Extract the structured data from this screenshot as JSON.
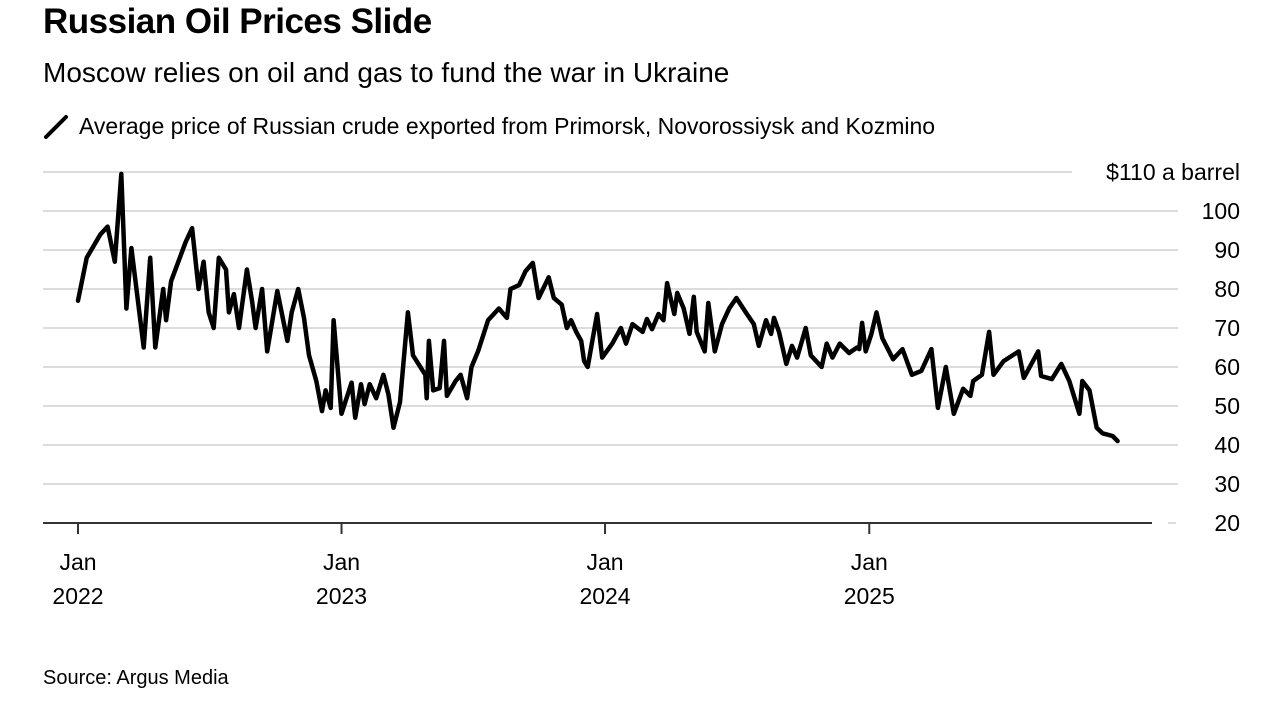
{
  "header": {
    "title": "Russian Oil Prices Slide",
    "subtitle": "Moscow relies on oil and gas to fund the war in Ukraine"
  },
  "legend": {
    "label": "Average price of Russian crude exported from Primorsk, Novorossiysk and Kozmino",
    "icon": "line-swatch-icon"
  },
  "footer": {
    "source": "Source: Argus Media"
  },
  "colors": {
    "line": "#000000",
    "grid": "#dcdcdc",
    "axis": "#333333"
  },
  "chart_data": {
    "type": "line",
    "title": "Russian Oil Prices Slide",
    "subtitle": "Moscow relies on oil and gas to fund the war in Ukraine",
    "xlabel": "",
    "ylabel": "",
    "ylim": [
      20,
      110
    ],
    "grid": true,
    "legend_position": "top-left",
    "y_ticks": [
      {
        "value": 110,
        "label": "$110 a barrel"
      },
      {
        "value": 100,
        "label": "100"
      },
      {
        "value": 90,
        "label": "90"
      },
      {
        "value": 80,
        "label": "80"
      },
      {
        "value": 70,
        "label": "70"
      },
      {
        "value": 60,
        "label": "60"
      },
      {
        "value": 50,
        "label": "50"
      },
      {
        "value": 40,
        "label": "40"
      },
      {
        "value": 30,
        "label": "30"
      },
      {
        "value": 20,
        "label": "20"
      }
    ],
    "x_ticks": [
      {
        "date": "2022-01-01",
        "month": "Jan",
        "year": "2022"
      },
      {
        "date": "2023-01-01",
        "month": "Jan",
        "year": "2023"
      },
      {
        "date": "2024-01-01",
        "month": "Jan",
        "year": "2024"
      },
      {
        "date": "2025-01-01",
        "month": "Jan",
        "year": "2025"
      }
    ],
    "series": [
      {
        "points": [
          [
            "2022-01-01",
            77
          ],
          [
            "2022-01-13",
            88
          ],
          [
            "2022-02-01",
            94
          ],
          [
            "2022-02-11",
            96
          ],
          [
            "2022-02-21",
            87
          ],
          [
            "2022-03-02",
            109.5
          ],
          [
            "2022-03-09",
            75
          ],
          [
            "2022-03-16",
            90.5
          ],
          [
            "2022-04-02",
            65
          ],
          [
            "2022-04-11",
            88
          ],
          [
            "2022-04-18",
            65
          ],
          [
            "2022-04-29",
            80
          ],
          [
            "2022-05-03",
            72
          ],
          [
            "2022-05-10",
            82
          ],
          [
            "2022-05-30",
            92
          ],
          [
            "2022-06-08",
            95.6
          ],
          [
            "2022-06-17",
            80
          ],
          [
            "2022-06-24",
            87
          ],
          [
            "2022-07-01",
            74
          ],
          [
            "2022-07-08",
            70
          ],
          [
            "2022-07-15",
            88
          ],
          [
            "2022-07-25",
            85
          ],
          [
            "2022-07-29",
            74
          ],
          [
            "2022-08-05",
            78.7
          ],
          [
            "2022-08-12",
            70
          ],
          [
            "2022-08-23",
            85
          ],
          [
            "2022-08-30",
            77
          ],
          [
            "2022-09-04",
            70
          ],
          [
            "2022-09-13",
            80
          ],
          [
            "2022-09-20",
            64
          ],
          [
            "2022-10-04",
            79.5
          ],
          [
            "2022-10-18",
            66.7
          ],
          [
            "2022-10-24",
            74
          ],
          [
            "2022-11-02",
            80
          ],
          [
            "2022-11-10",
            72.6
          ],
          [
            "2022-11-17",
            63
          ],
          [
            "2022-11-27",
            56.4
          ],
          [
            "2022-12-05",
            48.7
          ],
          [
            "2022-12-10",
            54
          ],
          [
            "2022-12-17",
            49.5
          ],
          [
            "2022-12-21",
            72
          ],
          [
            "2023-01-01",
            48
          ],
          [
            "2023-01-15",
            56
          ],
          [
            "2023-01-20",
            47
          ],
          [
            "2023-01-28",
            55.6
          ],
          [
            "2023-02-02",
            50.5
          ],
          [
            "2023-02-09",
            55.6
          ],
          [
            "2023-02-18",
            52
          ],
          [
            "2023-02-28",
            58
          ],
          [
            "2023-03-07",
            53
          ],
          [
            "2023-03-14",
            44.4
          ],
          [
            "2023-03-23",
            51
          ],
          [
            "2023-04-03",
            74
          ],
          [
            "2023-04-10",
            63
          ],
          [
            "2023-04-27",
            58
          ],
          [
            "2023-04-29",
            52
          ],
          [
            "2023-05-02",
            66.7
          ],
          [
            "2023-05-08",
            54
          ],
          [
            "2023-05-17",
            54.6
          ],
          [
            "2023-05-23",
            66.7
          ],
          [
            "2023-05-27",
            52.6
          ],
          [
            "2023-06-08",
            56.4
          ],
          [
            "2023-06-15",
            58
          ],
          [
            "2023-06-24",
            52
          ],
          [
            "2023-06-30",
            60
          ],
          [
            "2023-07-09",
            64
          ],
          [
            "2023-07-23",
            72
          ],
          [
            "2023-08-07",
            75
          ],
          [
            "2023-08-18",
            72.6
          ],
          [
            "2023-08-23",
            80
          ],
          [
            "2023-09-04",
            81
          ],
          [
            "2023-09-13",
            84.6
          ],
          [
            "2023-09-23",
            86.7
          ],
          [
            "2023-10-01",
            77.7
          ],
          [
            "2023-10-15",
            83
          ],
          [
            "2023-10-22",
            77.7
          ],
          [
            "2023-11-02",
            76
          ],
          [
            "2023-11-09",
            70
          ],
          [
            "2023-11-15",
            72
          ],
          [
            "2023-11-22",
            69
          ],
          [
            "2023-11-29",
            66.7
          ],
          [
            "2023-12-03",
            61.5
          ],
          [
            "2023-12-08",
            60
          ],
          [
            "2023-12-21",
            73.6
          ],
          [
            "2023-12-28",
            62.4
          ],
          [
            "2024-01-11",
            66
          ],
          [
            "2024-01-23",
            70
          ],
          [
            "2024-01-30",
            66
          ],
          [
            "2024-02-08",
            71
          ],
          [
            "2024-02-22",
            69
          ],
          [
            "2024-02-28",
            72.3
          ],
          [
            "2024-03-06",
            69.7
          ],
          [
            "2024-03-15",
            73.6
          ],
          [
            "2024-03-22",
            72
          ],
          [
            "2024-03-27",
            81.5
          ],
          [
            "2024-04-06",
            73.6
          ],
          [
            "2024-04-10",
            79
          ],
          [
            "2024-04-19",
            75
          ],
          [
            "2024-04-27",
            68.5
          ],
          [
            "2024-05-03",
            78
          ],
          [
            "2024-05-07",
            69
          ],
          [
            "2024-05-18",
            64
          ],
          [
            "2024-05-23",
            76.4
          ],
          [
            "2024-06-01",
            64
          ],
          [
            "2024-06-11",
            71
          ],
          [
            "2024-06-21",
            75
          ],
          [
            "2024-07-01",
            77.7
          ],
          [
            "2024-07-14",
            74
          ],
          [
            "2024-07-25",
            71
          ],
          [
            "2024-08-01",
            65.4
          ],
          [
            "2024-08-11",
            72
          ],
          [
            "2024-08-18",
            68.5
          ],
          [
            "2024-08-22",
            72.6
          ],
          [
            "2024-08-29",
            69
          ],
          [
            "2024-09-08",
            60.8
          ],
          [
            "2024-09-16",
            65.4
          ],
          [
            "2024-09-23",
            62.4
          ],
          [
            "2024-10-05",
            70
          ],
          [
            "2024-10-12",
            63
          ],
          [
            "2024-10-27",
            60
          ],
          [
            "2024-11-03",
            66
          ],
          [
            "2024-11-11",
            62.4
          ],
          [
            "2024-11-21",
            66
          ],
          [
            "2024-12-04",
            63.6
          ],
          [
            "2024-12-15",
            65
          ],
          [
            "2024-12-18",
            64.6
          ],
          [
            "2024-12-22",
            71.3
          ],
          [
            "2024-12-27",
            64
          ],
          [
            "2025-01-04",
            68.5
          ],
          [
            "2025-01-11",
            74
          ],
          [
            "2025-01-19",
            67.4
          ],
          [
            "2025-02-03",
            62
          ],
          [
            "2025-02-16",
            64.6
          ],
          [
            "2025-03-01",
            58
          ],
          [
            "2025-03-14",
            59
          ],
          [
            "2025-03-28",
            64.6
          ],
          [
            "2025-04-06",
            49.5
          ],
          [
            "2025-04-17",
            60
          ],
          [
            "2025-04-28",
            48
          ],
          [
            "2025-05-11",
            54.4
          ],
          [
            "2025-05-21",
            52.6
          ],
          [
            "2025-05-25",
            56.4
          ],
          [
            "2025-06-06",
            58
          ],
          [
            "2025-06-16",
            69
          ],
          [
            "2025-06-22",
            58
          ],
          [
            "2025-07-06",
            61.5
          ],
          [
            "2025-07-27",
            64
          ],
          [
            "2025-08-03",
            57.2
          ],
          [
            "2025-08-23",
            64
          ],
          [
            "2025-08-27",
            57.7
          ],
          [
            "2025-09-11",
            56.9
          ],
          [
            "2025-09-24",
            60.8
          ],
          [
            "2025-10-05",
            56.4
          ],
          [
            "2025-10-19",
            48
          ],
          [
            "2025-10-23",
            56.4
          ],
          [
            "2025-11-02",
            54
          ],
          [
            "2025-11-12",
            44.4
          ],
          [
            "2025-11-20",
            43
          ],
          [
            "2025-12-04",
            42.3
          ],
          [
            "2025-12-11",
            41
          ]
        ]
      }
    ]
  }
}
